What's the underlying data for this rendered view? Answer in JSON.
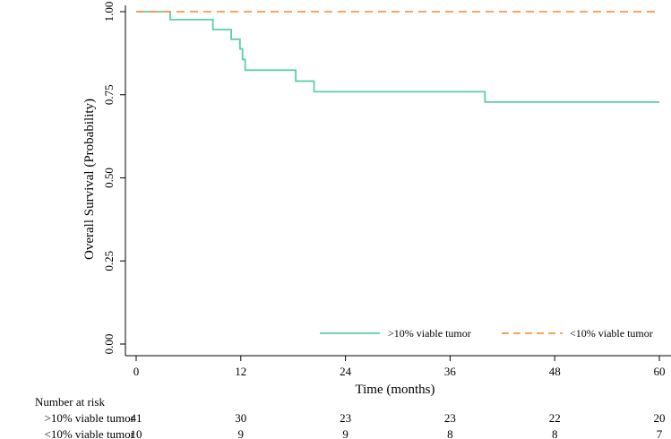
{
  "chart_data": {
    "type": "line",
    "subtype": "kaplan-meier",
    "title": "",
    "xlabel": "Time (months)",
    "ylabel": "Overall Survival (Probability)",
    "xlim": [
      0,
      60
    ],
    "ylim": [
      0,
      1
    ],
    "x_ticks": [
      0,
      12,
      24,
      36,
      48,
      60
    ],
    "x_tick_labels": [
      "0",
      "12",
      "24",
      "36",
      "48",
      "60"
    ],
    "y_ticks": [
      0,
      0.25,
      0.5,
      0.75,
      1.0
    ],
    "y_tick_labels": [
      "0.00",
      "0.25",
      "0.50",
      "0.75",
      "1.00"
    ],
    "grid": false,
    "legend_position": "bottom-right",
    "series": [
      {
        "name": ">10% viable tumor",
        "color": "#5ccfa6",
        "style": "solid",
        "steps": [
          [
            0,
            1.0
          ],
          [
            3.9,
            0.976
          ],
          [
            8.8,
            0.946
          ],
          [
            10.9,
            0.917
          ],
          [
            11.9,
            0.888
          ],
          [
            12.2,
            0.856
          ],
          [
            12.5,
            0.824
          ],
          [
            18.3,
            0.791
          ],
          [
            20.4,
            0.759
          ],
          [
            40.0,
            0.728
          ],
          [
            60,
            0.728
          ]
        ]
      },
      {
        "name": "<10% viable tumor",
        "color": "#f29a4a",
        "style": "dashed",
        "steps": [
          [
            0,
            1.0
          ],
          [
            60,
            1.0
          ]
        ]
      }
    ],
    "risk_table": {
      "title": "Number at risk",
      "times": [
        0,
        12,
        24,
        36,
        48,
        60
      ],
      "rows": [
        {
          "label": ">10% viable tumor",
          "values": [
            "41",
            "30",
            "23",
            "23",
            "22",
            "20"
          ]
        },
        {
          "label": "<10% viable tumor",
          "values": [
            "10",
            "9",
            "9",
            "8",
            "8",
            "7"
          ]
        }
      ]
    }
  }
}
